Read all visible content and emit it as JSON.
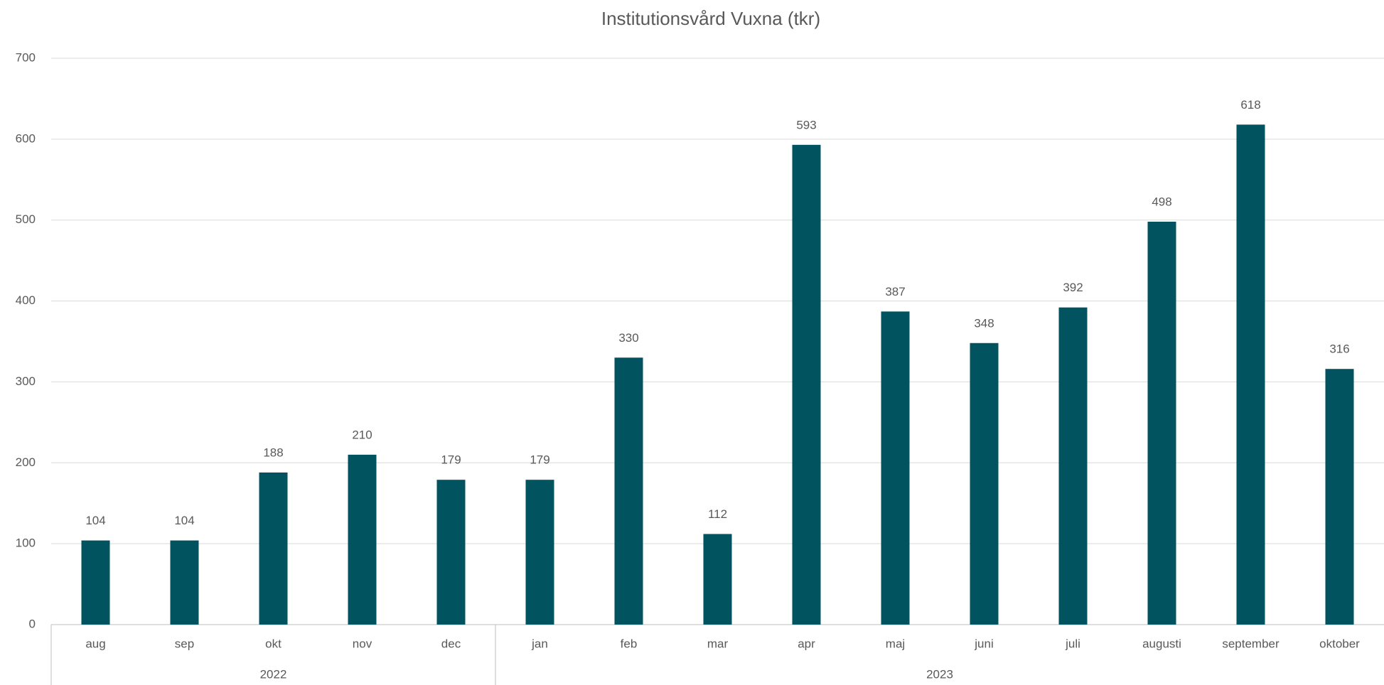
{
  "chart_data": {
    "type": "bar",
    "title": "Institutionsvård Vuxna (tkr)",
    "groups": [
      {
        "name": "2022",
        "categories": [
          "aug",
          "sep",
          "okt",
          "nov",
          "dec"
        ]
      },
      {
        "name": "2023",
        "categories": [
          "jan",
          "feb",
          "mar",
          "apr",
          "maj",
          "juni",
          "juli",
          "augusti",
          "september",
          "oktober"
        ]
      }
    ],
    "values": [
      104,
      104,
      188,
      210,
      179,
      179,
      330,
      112,
      593,
      387,
      348,
      392,
      498,
      618,
      316
    ],
    "color": "#00535f",
    "ylim": [
      0,
      700
    ],
    "yticks": [
      0,
      100,
      200,
      300,
      400,
      500,
      600,
      700
    ],
    "grid": true
  }
}
